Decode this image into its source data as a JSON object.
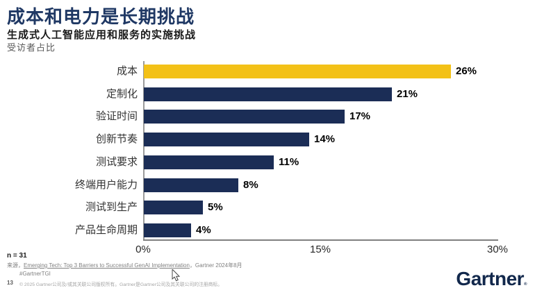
{
  "header": {
    "title": "成本和电力是长期挑战",
    "subtitle": "生成式人工智能应用和服务的实施挑战",
    "caption": "受访者占比"
  },
  "chart_data": {
    "type": "bar",
    "orientation": "horizontal",
    "title": "生成式人工智能应用和服务的实施挑战",
    "ylabel": "",
    "xlabel": "受访者占比",
    "categories": [
      "成本",
      "定制化",
      "验证时间",
      "创新节奏",
      "测试要求",
      "终端用户能力",
      "测试到生产",
      "产品生命周期"
    ],
    "values": [
      26,
      21,
      17,
      14,
      11,
      8,
      5,
      4
    ],
    "value_labels": [
      "26%",
      "21%",
      "17%",
      "14%",
      "11%",
      "8%",
      "5%",
      "4%"
    ],
    "xlim": [
      0,
      30
    ],
    "x_ticks": [
      {
        "label": "0%",
        "value": 0
      },
      {
        "label": "15%",
        "value": 15
      },
      {
        "label": "30%",
        "value": 30
      }
    ],
    "grid": false,
    "legend": "none",
    "highlight_index": 0,
    "colors": {
      "highlight": "#F3C117",
      "default": "#1B2D56"
    }
  },
  "footer": {
    "n_label": "n = 31",
    "source_prefix": "来源，",
    "source_link": "Emerging Tech: Top 3 Barriers to Successful GenAI Implementation",
    "source_suffix": "，Gartner 2024年8月",
    "hashtag": "#GartnerTGI",
    "page_number": "13",
    "copyright": "© 2025 Gartner公司及/或其关联公司版权所有。Gartner是Gartner公司及其关联公司的注册商标。",
    "logo_text": "Gartner",
    "logo_reg": "®"
  },
  "colors": {
    "title_navy": "#1F3864",
    "bar_navy": "#1B2D56",
    "bar_gold": "#F3C117",
    "logo_navy": "#12284C",
    "axis_gray": "#7f7f7f"
  }
}
